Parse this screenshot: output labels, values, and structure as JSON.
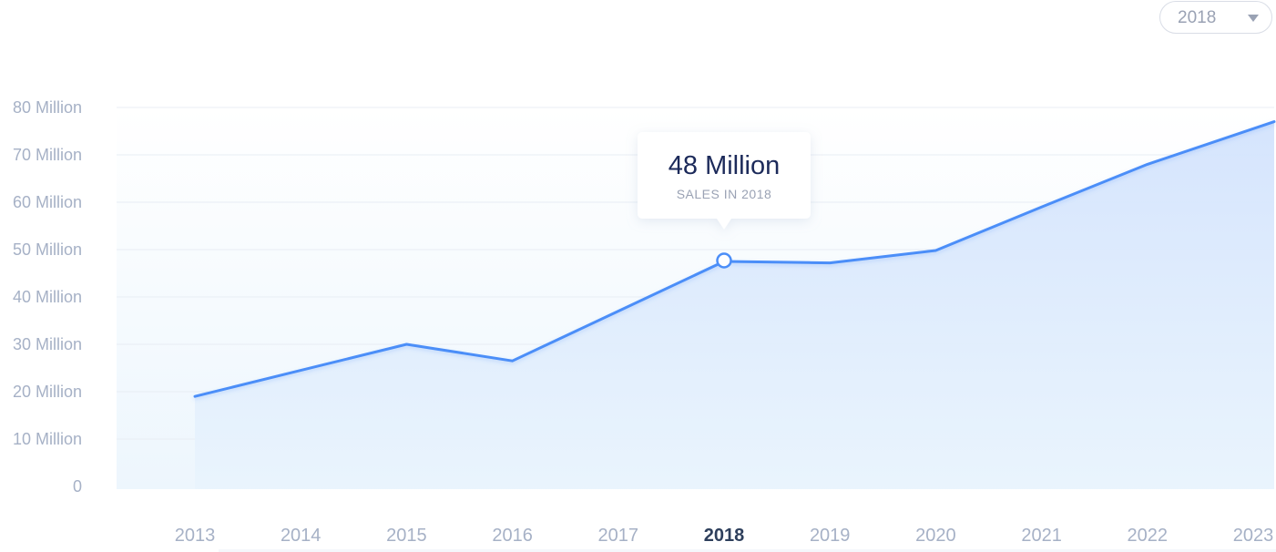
{
  "year_select": {
    "value": "2018",
    "icon": "chevron-down-icon"
  },
  "tooltip": {
    "value": "48 Million",
    "label": "SALES IN 2018"
  },
  "chart_data": {
    "type": "area",
    "x": [
      "2013",
      "2014",
      "2015",
      "2016",
      "2017",
      "2018",
      "2019",
      "2020",
      "2021",
      "2022",
      "2023"
    ],
    "series": [
      {
        "values": [
          19,
          24.5,
          30,
          26.5,
          37,
          47.5,
          47.2,
          49.8,
          59,
          68,
          77
        ]
      }
    ],
    "y_tick_labels": [
      "0",
      "10 Million",
      "20 Million",
      "30 Million",
      "40 Million",
      "50 Million",
      "60 Million",
      "70 Million",
      "80 Million"
    ],
    "ylim": [
      0,
      80
    ],
    "highlight_category": "2018",
    "grid": true,
    "line_color": "#4b8ef8",
    "fill_color": "#dbe9fd",
    "title": "",
    "xlabel": "",
    "ylabel": ""
  }
}
